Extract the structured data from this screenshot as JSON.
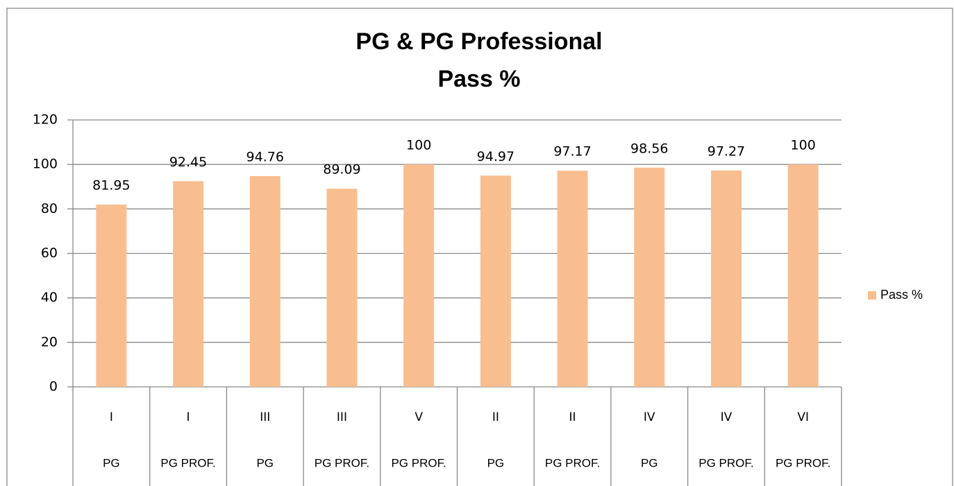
{
  "chart_data": {
    "type": "bar",
    "title": [
      "PG & PG Professional",
      "Pass %"
    ],
    "categories": [
      "I",
      "I",
      "III",
      "III",
      "V",
      "II",
      "II",
      "IV",
      "IV",
      "VI"
    ],
    "subcategories": [
      "PG",
      "PG PROF.",
      "PG",
      "PG PROF.",
      "PG PROF.",
      "PG",
      "PG PROF.",
      "PG",
      "PG PROF.",
      "PG PROF."
    ],
    "series": [
      {
        "name": "Pass %",
        "color": "#f9be8f",
        "values": [
          81.95,
          92.45,
          94.76,
          89.09,
          100,
          94.97,
          97.17,
          98.56,
          97.27,
          100
        ]
      }
    ],
    "ylim": [
      0,
      120
    ],
    "yticks": [
      0,
      20,
      40,
      60,
      80,
      100,
      120
    ],
    "grid": true,
    "legend": "right"
  }
}
